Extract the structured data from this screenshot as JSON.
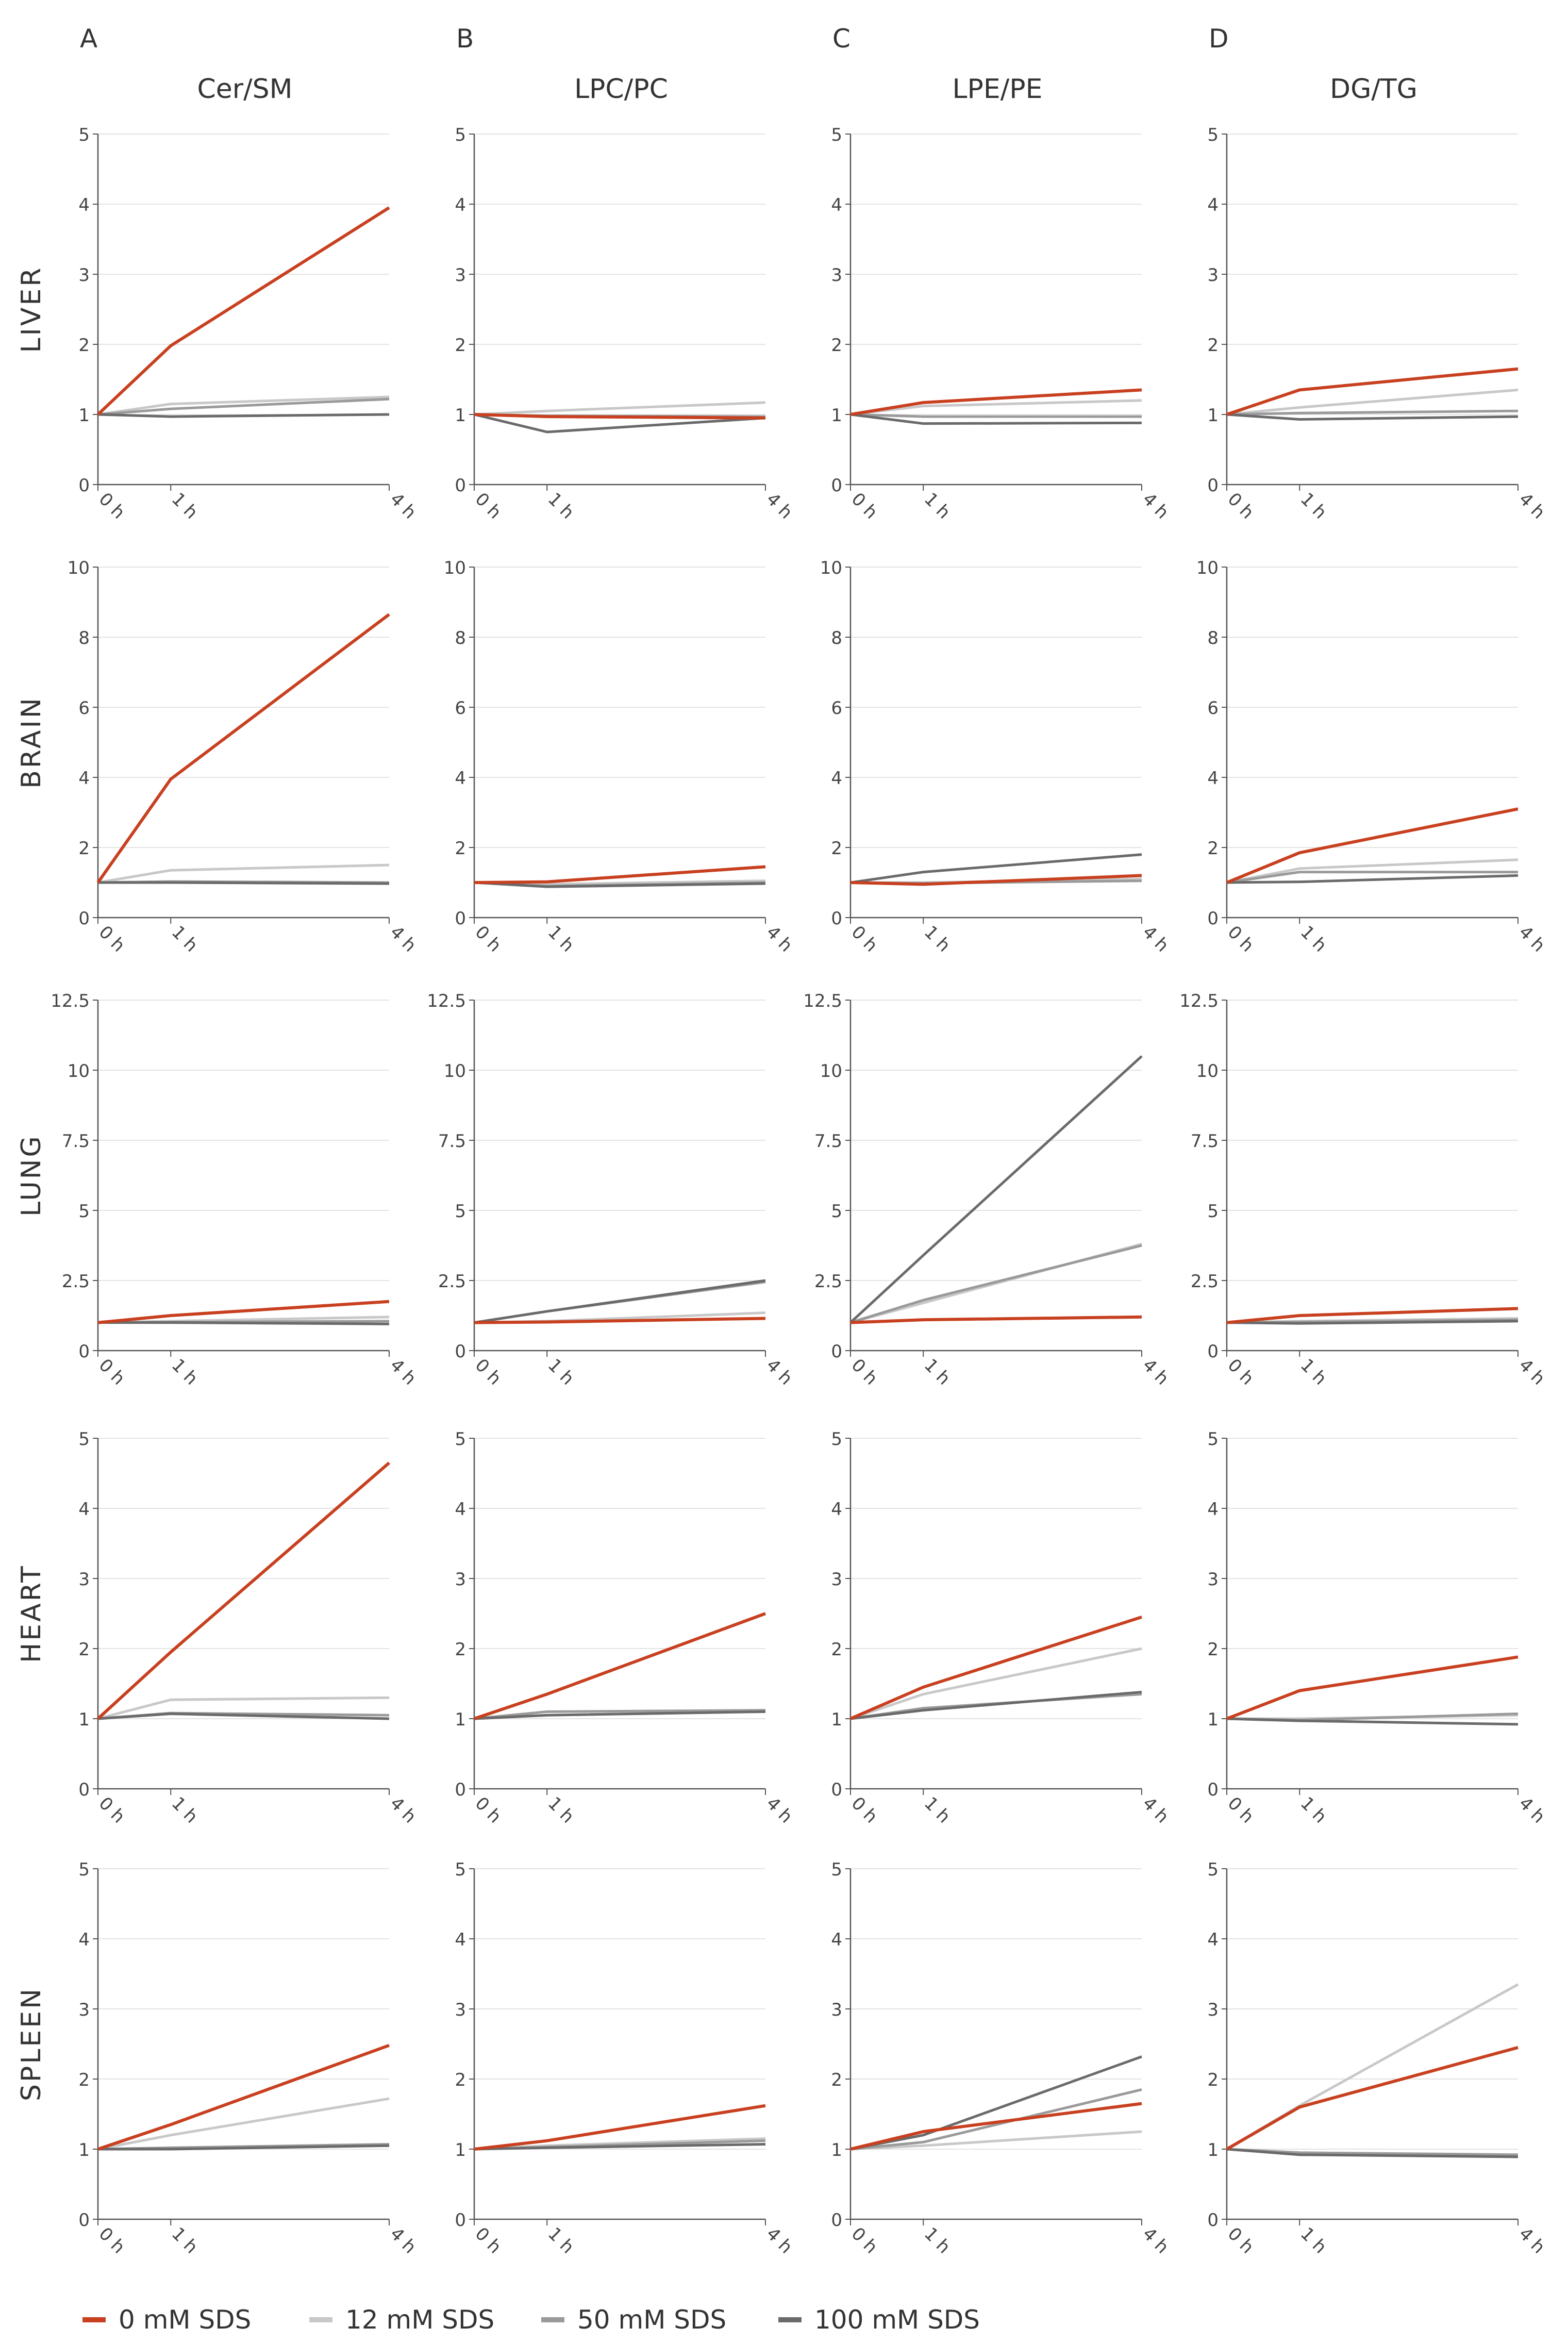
{
  "figure": {
    "column_letters": [
      "A",
      "B",
      "C",
      "D"
    ],
    "column_titles": [
      "Cer/SM",
      "LPC/PC",
      "LPE/PE",
      "DG/TG"
    ],
    "row_labels": [
      "LIVER",
      "BRAIN",
      "LUNG",
      "HEART",
      "SPLEEN"
    ],
    "x_tick_labels": [
      "0 h",
      "1 h",
      "4 h"
    ],
    "legend": [
      {
        "label": "0 mM SDS",
        "color": "#c8401f"
      },
      {
        "label": "12 mM SDS",
        "color": "#c8c8c8"
      },
      {
        "label": "50 mM SDS",
        "color": "#9a9a9a"
      },
      {
        "label": "100 mM SDS",
        "color": "#6a6a6a"
      }
    ]
  },
  "chart_data": [
    {
      "type": "line",
      "row": "LIVER",
      "column": "Cer/SM",
      "x": [
        0,
        1,
        4
      ],
      "ylim": [
        0,
        5
      ],
      "yticks": [
        "0",
        "1",
        "2",
        "3",
        "4",
        "5"
      ],
      "series": [
        {
          "name": "0 mM SDS",
          "values": [
            1,
            1.98,
            3.95
          ]
        },
        {
          "name": "12 mM SDS",
          "values": [
            1,
            1.15,
            1.25
          ]
        },
        {
          "name": "50 mM SDS",
          "values": [
            1,
            1.08,
            1.22
          ]
        },
        {
          "name": "100 mM SDS",
          "values": [
            1,
            0.97,
            1.0
          ]
        }
      ]
    },
    {
      "type": "line",
      "row": "LIVER",
      "column": "LPC/PC",
      "x": [
        0,
        1,
        4
      ],
      "ylim": [
        0,
        5
      ],
      "yticks": [
        "0",
        "1",
        "2",
        "3",
        "4",
        "5"
      ],
      "series": [
        {
          "name": "0 mM SDS",
          "values": [
            1,
            0.97,
            0.95
          ]
        },
        {
          "name": "12 mM SDS",
          "values": [
            1,
            1.05,
            1.17
          ]
        },
        {
          "name": "50 mM SDS",
          "values": [
            1,
            0.98,
            0.97
          ]
        },
        {
          "name": "100 mM SDS",
          "values": [
            1,
            0.75,
            0.95
          ]
        }
      ]
    },
    {
      "type": "line",
      "row": "LIVER",
      "column": "LPE/PE",
      "x": [
        0,
        1,
        4
      ],
      "ylim": [
        0,
        5
      ],
      "yticks": [
        "0",
        "1",
        "2",
        "3",
        "4",
        "5"
      ],
      "series": [
        {
          "name": "0 mM SDS",
          "values": [
            1,
            1.17,
            1.35
          ]
        },
        {
          "name": "12 mM SDS",
          "values": [
            1,
            1.12,
            1.2
          ]
        },
        {
          "name": "50 mM SDS",
          "values": [
            1,
            0.97,
            0.97
          ]
        },
        {
          "name": "100 mM SDS",
          "values": [
            1,
            0.87,
            0.88
          ]
        }
      ]
    },
    {
      "type": "line",
      "row": "LIVER",
      "column": "DG/TG",
      "x": [
        0,
        1,
        4
      ],
      "ylim": [
        0,
        5
      ],
      "yticks": [
        "0",
        "1",
        "2",
        "3",
        "4",
        "5"
      ],
      "series": [
        {
          "name": "0 mM SDS",
          "values": [
            1,
            1.35,
            1.65
          ]
        },
        {
          "name": "12 mM SDS",
          "values": [
            1,
            1.1,
            1.35
          ]
        },
        {
          "name": "50 mM SDS",
          "values": [
            1,
            1.02,
            1.05
          ]
        },
        {
          "name": "100 mM SDS",
          "values": [
            1,
            0.93,
            0.97
          ]
        }
      ]
    },
    {
      "type": "line",
      "row": "BRAIN",
      "column": "Cer/SM",
      "x": [
        0,
        1,
        4
      ],
      "ylim": [
        0,
        10
      ],
      "yticks": [
        "0",
        "2",
        "4",
        "6",
        "8",
        "10"
      ],
      "series": [
        {
          "name": "0 mM SDS",
          "values": [
            1,
            3.95,
            8.65
          ]
        },
        {
          "name": "12 mM SDS",
          "values": [
            1,
            1.35,
            1.5
          ]
        },
        {
          "name": "50 mM SDS",
          "values": [
            1,
            1.03,
            1.0
          ]
        },
        {
          "name": "100 mM SDS",
          "values": [
            1,
            1.0,
            0.97
          ]
        }
      ]
    },
    {
      "type": "line",
      "row": "BRAIN",
      "column": "LPC/PC",
      "x": [
        0,
        1,
        4
      ],
      "ylim": [
        0,
        10
      ],
      "yticks": [
        "0",
        "2",
        "4",
        "6",
        "8",
        "10"
      ],
      "series": [
        {
          "name": "0 mM SDS",
          "values": [
            1,
            1.02,
            1.45
          ]
        },
        {
          "name": "12 mM SDS",
          "values": [
            1,
            0.95,
            1.05
          ]
        },
        {
          "name": "50 mM SDS",
          "values": [
            1,
            0.9,
            1.0
          ]
        },
        {
          "name": "100 mM SDS",
          "values": [
            1,
            0.88,
            0.97
          ]
        }
      ]
    },
    {
      "type": "line",
      "row": "BRAIN",
      "column": "LPE/PE",
      "x": [
        0,
        1,
        4
      ],
      "ylim": [
        0,
        10
      ],
      "yticks": [
        "0",
        "2",
        "4",
        "6",
        "8",
        "10"
      ],
      "series": [
        {
          "name": "0 mM SDS",
          "values": [
            1,
            0.95,
            1.2
          ]
        },
        {
          "name": "12 mM SDS",
          "values": [
            1,
            1.0,
            1.1
          ]
        },
        {
          "name": "50 mM SDS",
          "values": [
            1,
            0.98,
            1.05
          ]
        },
        {
          "name": "100 mM SDS",
          "values": [
            1,
            1.3,
            1.8
          ]
        }
      ]
    },
    {
      "type": "line",
      "row": "BRAIN",
      "column": "DG/TG",
      "x": [
        0,
        1,
        4
      ],
      "ylim": [
        0,
        10
      ],
      "yticks": [
        "0",
        "2",
        "4",
        "6",
        "8",
        "10"
      ],
      "series": [
        {
          "name": "0 mM SDS",
          "values": [
            1,
            1.85,
            3.1
          ]
        },
        {
          "name": "12 mM SDS",
          "values": [
            1,
            1.4,
            1.65
          ]
        },
        {
          "name": "50 mM SDS",
          "values": [
            1,
            1.3,
            1.3
          ]
        },
        {
          "name": "100 mM SDS",
          "values": [
            1,
            1.02,
            1.2
          ]
        }
      ]
    },
    {
      "type": "line",
      "row": "LUNG",
      "column": "Cer/SM",
      "x": [
        0,
        1,
        4
      ],
      "ylim": [
        0,
        12.5
      ],
      "yticks": [
        "0",
        "2.5",
        "5",
        "7.5",
        "10",
        "12.5"
      ],
      "series": [
        {
          "name": "0 mM SDS",
          "values": [
            1,
            1.25,
            1.75
          ]
        },
        {
          "name": "12 mM SDS",
          "values": [
            1,
            1.05,
            1.2
          ]
        },
        {
          "name": "50 mM SDS",
          "values": [
            1,
            1.02,
            1.05
          ]
        },
        {
          "name": "100 mM SDS",
          "values": [
            1,
            1.0,
            0.95
          ]
        }
      ]
    },
    {
      "type": "line",
      "row": "LUNG",
      "column": "LPC/PC",
      "x": [
        0,
        1,
        4
      ],
      "ylim": [
        0,
        12.5
      ],
      "yticks": [
        "0",
        "2.5",
        "5",
        "7.5",
        "10",
        "12.5"
      ],
      "series": [
        {
          "name": "0 mM SDS",
          "values": [
            1,
            1.02,
            1.15
          ]
        },
        {
          "name": "12 mM SDS",
          "values": [
            1,
            1.05,
            1.35
          ]
        },
        {
          "name": "50 mM SDS",
          "values": [
            1,
            1.4,
            2.45
          ]
        },
        {
          "name": "100 mM SDS",
          "values": [
            1,
            1.4,
            2.5
          ]
        }
      ]
    },
    {
      "type": "line",
      "row": "LUNG",
      "column": "LPE/PE",
      "x": [
        0,
        1,
        4
      ],
      "ylim": [
        0,
        12.5
      ],
      "yticks": [
        "0",
        "2.5",
        "5",
        "7.5",
        "10",
        "12.5"
      ],
      "series": [
        {
          "name": "0 mM SDS",
          "values": [
            1,
            1.1,
            1.2
          ]
        },
        {
          "name": "12 mM SDS",
          "values": [
            1,
            1.7,
            3.8
          ]
        },
        {
          "name": "50 mM SDS",
          "values": [
            1,
            1.8,
            3.75
          ]
        },
        {
          "name": "100 mM SDS",
          "values": [
            1,
            3.4,
            10.5
          ]
        }
      ]
    },
    {
      "type": "line",
      "row": "LUNG",
      "column": "DG/TG",
      "x": [
        0,
        1,
        4
      ],
      "ylim": [
        0,
        12.5
      ],
      "yticks": [
        "0",
        "2.5",
        "5",
        "7.5",
        "10",
        "12.5"
      ],
      "series": [
        {
          "name": "0 mM SDS",
          "values": [
            1,
            1.25,
            1.5
          ]
        },
        {
          "name": "12 mM SDS",
          "values": [
            1,
            1.05,
            1.15
          ]
        },
        {
          "name": "50 mM SDS",
          "values": [
            1,
            1.02,
            1.1
          ]
        },
        {
          "name": "100 mM SDS",
          "values": [
            1,
            0.97,
            1.05
          ]
        }
      ]
    },
    {
      "type": "line",
      "row": "HEART",
      "column": "Cer/SM",
      "x": [
        0,
        1,
        4
      ],
      "ylim": [
        0,
        5
      ],
      "yticks": [
        "0",
        "1",
        "2",
        "3",
        "4",
        "5"
      ],
      "series": [
        {
          "name": "0 mM SDS",
          "values": [
            1,
            1.95,
            4.65
          ]
        },
        {
          "name": "12 mM SDS",
          "values": [
            1,
            1.27,
            1.3
          ]
        },
        {
          "name": "50 mM SDS",
          "values": [
            1,
            1.08,
            1.05
          ]
        },
        {
          "name": "100 mM SDS",
          "values": [
            1,
            1.07,
            1.0
          ]
        }
      ]
    },
    {
      "type": "line",
      "row": "HEART",
      "column": "LPC/PC",
      "x": [
        0,
        1,
        4
      ],
      "ylim": [
        0,
        5
      ],
      "yticks": [
        "0",
        "1",
        "2",
        "3",
        "4",
        "5"
      ],
      "series": [
        {
          "name": "0 mM SDS",
          "values": [
            1,
            1.35,
            2.5
          ]
        },
        {
          "name": "12 mM SDS",
          "values": [
            1,
            1.05,
            1.1
          ]
        },
        {
          "name": "50 mM SDS",
          "values": [
            1,
            1.1,
            1.12
          ]
        },
        {
          "name": "100 mM SDS",
          "values": [
            1,
            1.05,
            1.1
          ]
        }
      ]
    },
    {
      "type": "line",
      "row": "HEART",
      "column": "LPE/PE",
      "x": [
        0,
        1,
        4
      ],
      "ylim": [
        0,
        5
      ],
      "yticks": [
        "0",
        "1",
        "2",
        "3",
        "4",
        "5"
      ],
      "series": [
        {
          "name": "0 mM SDS",
          "values": [
            1,
            1.45,
            2.45
          ]
        },
        {
          "name": "12 mM SDS",
          "values": [
            1,
            1.35,
            2.0
          ]
        },
        {
          "name": "50 mM SDS",
          "values": [
            1,
            1.15,
            1.35
          ]
        },
        {
          "name": "100 mM SDS",
          "values": [
            1,
            1.12,
            1.38
          ]
        }
      ]
    },
    {
      "type": "line",
      "row": "HEART",
      "column": "DG/TG",
      "x": [
        0,
        1,
        4
      ],
      "ylim": [
        0,
        5
      ],
      "yticks": [
        "0",
        "1",
        "2",
        "3",
        "4",
        "5"
      ],
      "series": [
        {
          "name": "0 mM SDS",
          "values": [
            1,
            1.4,
            1.88
          ]
        },
        {
          "name": "12 mM SDS",
          "values": [
            1,
            1.0,
            1.05
          ]
        },
        {
          "name": "50 mM SDS",
          "values": [
            1,
            0.98,
            1.07
          ]
        },
        {
          "name": "100 mM SDS",
          "values": [
            1,
            0.97,
            0.92
          ]
        }
      ]
    },
    {
      "type": "line",
      "row": "SPLEEN",
      "column": "Cer/SM",
      "x": [
        0,
        1,
        4
      ],
      "ylim": [
        0,
        5
      ],
      "yticks": [
        "0",
        "1",
        "2",
        "3",
        "4",
        "5"
      ],
      "series": [
        {
          "name": "0 mM SDS",
          "values": [
            1,
            1.35,
            2.48
          ]
        },
        {
          "name": "12 mM SDS",
          "values": [
            1,
            1.2,
            1.72
          ]
        },
        {
          "name": "50 mM SDS",
          "values": [
            1,
            1.02,
            1.07
          ]
        },
        {
          "name": "100 mM SDS",
          "values": [
            1,
            1.0,
            1.05
          ]
        }
      ]
    },
    {
      "type": "line",
      "row": "SPLEEN",
      "column": "LPC/PC",
      "x": [
        0,
        1,
        4
      ],
      "ylim": [
        0,
        5
      ],
      "yticks": [
        "0",
        "1",
        "2",
        "3",
        "4",
        "5"
      ],
      "series": [
        {
          "name": "0 mM SDS",
          "values": [
            1,
            1.12,
            1.62
          ]
        },
        {
          "name": "12 mM SDS",
          "values": [
            1,
            1.05,
            1.15
          ]
        },
        {
          "name": "50 mM SDS",
          "values": [
            1,
            1.03,
            1.12
          ]
        },
        {
          "name": "100 mM SDS",
          "values": [
            1,
            1.02,
            1.07
          ]
        }
      ]
    },
    {
      "type": "line",
      "row": "SPLEEN",
      "column": "LPE/PE",
      "x": [
        0,
        1,
        4
      ],
      "ylim": [
        0,
        5
      ],
      "yticks": [
        "0",
        "1",
        "2",
        "3",
        "4",
        "5"
      ],
      "series": [
        {
          "name": "0 mM SDS",
          "values": [
            1,
            1.25,
            1.65
          ]
        },
        {
          "name": "12 mM SDS",
          "values": [
            1,
            1.05,
            1.25
          ]
        },
        {
          "name": "50 mM SDS",
          "values": [
            1,
            1.1,
            1.85
          ]
        },
        {
          "name": "100 mM SDS",
          "values": [
            1,
            1.2,
            2.32
          ]
        }
      ]
    },
    {
      "type": "line",
      "row": "SPLEEN",
      "column": "DG/TG",
      "x": [
        0,
        1,
        4
      ],
      "ylim": [
        0,
        5
      ],
      "yticks": [
        "0",
        "1",
        "2",
        "3",
        "4",
        "5"
      ],
      "series": [
        {
          "name": "0 mM SDS",
          "values": [
            1,
            1.6,
            2.45
          ]
        },
        {
          "name": "12 mM SDS",
          "values": [
            1,
            1.62,
            3.35
          ]
        },
        {
          "name": "50 mM SDS",
          "values": [
            1,
            0.95,
            0.92
          ]
        },
        {
          "name": "100 mM SDS",
          "values": [
            1,
            0.92,
            0.89
          ]
        }
      ]
    }
  ]
}
